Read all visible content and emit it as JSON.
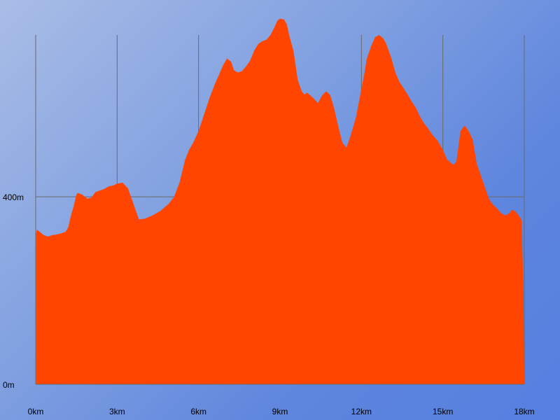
{
  "chart_data": {
    "type": "area",
    "title": "",
    "xlabel": "",
    "ylabel": "",
    "colors": {
      "fill": "#ff4500",
      "grid": "#6a6a6a"
    },
    "xlim": [
      0,
      18
    ],
    "ylim": [
      0,
      745
    ],
    "grid": true,
    "x_ticks": [
      {
        "value": 0,
        "label": "0km"
      },
      {
        "value": 3,
        "label": "3km"
      },
      {
        "value": 6,
        "label": "6km"
      },
      {
        "value": 9,
        "label": "9km"
      },
      {
        "value": 12,
        "label": "12km"
      },
      {
        "value": 15,
        "label": "15km"
      },
      {
        "value": 18,
        "label": "18km"
      }
    ],
    "y_ticks": [
      {
        "value": 0,
        "label": "0m"
      },
      {
        "value": 400,
        "label": "400m"
      }
    ],
    "series": [
      {
        "x": [
          0,
          0.05,
          0.15,
          0.3,
          0.45,
          0.6,
          0.8,
          0.95,
          1.1,
          1.2,
          1.3,
          1.4,
          1.5,
          1.55,
          1.7,
          1.9,
          2.05,
          2.2,
          2.3,
          2.5,
          2.7,
          2.85,
          3.0,
          3.2,
          3.4,
          3.6,
          3.8,
          4.0,
          4.3,
          4.6,
          4.9,
          5.1,
          5.3,
          5.5,
          5.65,
          5.8,
          6.0,
          6.2,
          6.4,
          6.6,
          6.75,
          6.9,
          7.05,
          7.2,
          7.3,
          7.45,
          7.6,
          7.75,
          7.9,
          8.05,
          8.2,
          8.35,
          8.5,
          8.65,
          8.8,
          8.9,
          9.0,
          9.15,
          9.25,
          9.35,
          9.5,
          9.65,
          9.8,
          9.9,
          10.0,
          10.2,
          10.4,
          10.55,
          10.7,
          10.85,
          11.0,
          11.15,
          11.3,
          11.45,
          11.6,
          11.8,
          11.95,
          12.1,
          12.2,
          12.35,
          12.5,
          12.65,
          12.8,
          12.9,
          13.0,
          13.1,
          13.25,
          13.4,
          13.55,
          13.7,
          13.85,
          14.0,
          14.15,
          14.3,
          14.45,
          14.6,
          14.8,
          15.0,
          15.15,
          15.3,
          15.4,
          15.5,
          15.65,
          15.8,
          15.95,
          16.1,
          16.25,
          16.4,
          16.55,
          16.7,
          16.85,
          17.0,
          17.15,
          17.3,
          17.45,
          17.55,
          17.65,
          17.8,
          17.9,
          17.97,
          18.0
        ],
        "y": [
          320,
          330,
          325,
          318,
          315,
          318,
          320,
          322,
          325,
          335,
          360,
          380,
          405,
          408,
          405,
          396,
          398,
          410,
          412,
          416,
          422,
          424,
          428,
          430,
          418,
          385,
          352,
          353,
          360,
          370,
          385,
          400,
          430,
          478,
          500,
          515,
          540,
          575,
          610,
          640,
          660,
          680,
          695,
          688,
          670,
          665,
          668,
          678,
          690,
          712,
          726,
          732,
          735,
          745,
          762,
          775,
          780,
          778,
          768,
          742,
          710,
          650,
          625,
          618,
          622,
          612,
          600,
          616,
          625,
          617,
          587,
          549,
          515,
          505,
          530,
          570,
          615,
          660,
          695,
          720,
          740,
          745,
          738,
          728,
          712,
          696,
          665,
          645,
          632,
          618,
          603,
          590,
          572,
          557,
          546,
          533,
          520,
          500,
          480,
          472,
          468,
          476,
          540,
          552,
          540,
          522,
          470,
          445,
          420,
          395,
          383,
          375,
          365,
          360,
          365,
          372,
          370,
          360,
          350,
          200,
          0
        ]
      }
    ]
  }
}
